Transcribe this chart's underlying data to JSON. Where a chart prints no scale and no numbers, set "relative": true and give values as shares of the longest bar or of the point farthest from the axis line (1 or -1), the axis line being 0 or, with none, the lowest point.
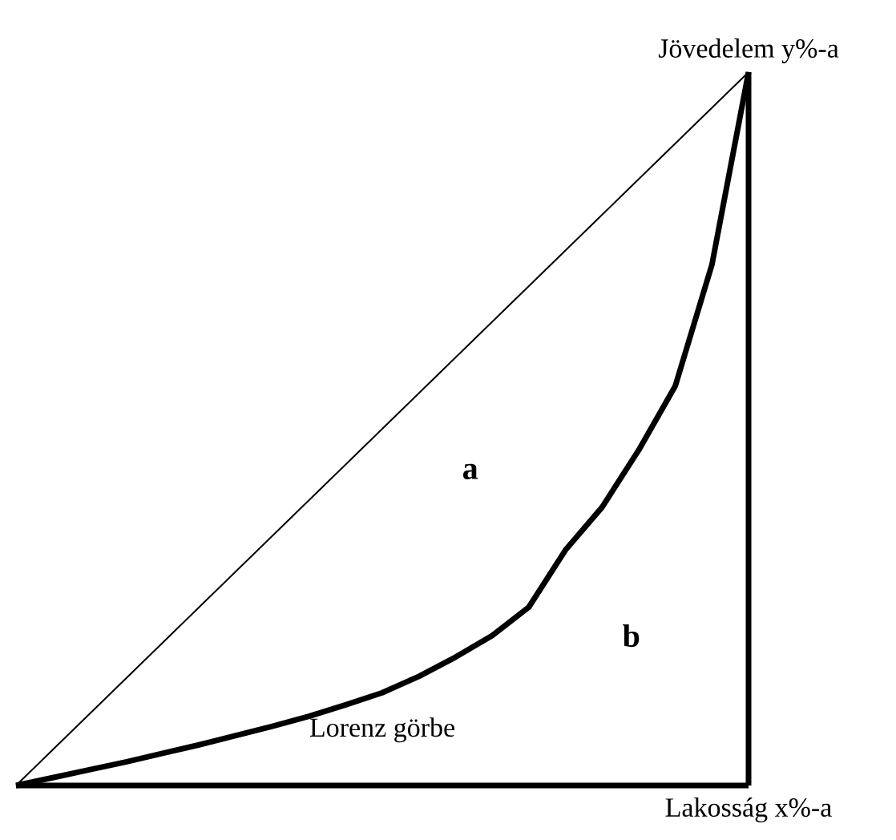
{
  "chart_data": {
    "type": "line",
    "relative": true,
    "xlabel": "Lakosság x%-a",
    "ylabel": "Jövedelem y%-a",
    "annotations": [
      "a",
      "b"
    ],
    "categories": [
      null,
      null,
      null,
      null,
      null,
      null,
      null,
      null,
      null,
      null,
      null,
      null,
      null,
      null,
      null,
      null,
      null,
      null,
      null,
      null,
      null
    ],
    "series": [
      {
        "color": "#000000",
        "values": [
          0,
          0.05,
          0.1,
          0.15,
          0.2,
          0.25,
          0.3,
          0.35,
          0.4,
          0.45,
          0.5,
          0.55,
          0.6,
          0.65,
          0.7,
          0.75,
          0.8,
          0.85,
          0.9,
          0.95,
          1
        ]
      },
      {
        "name": "Lorenz görbe",
        "color": "#000000",
        "values": [
          0,
          0.011,
          0.022,
          0.033,
          0.045,
          0.057,
          0.07,
          0.083,
          0.097,
          0.113,
          0.13,
          0.153,
          0.18,
          0.21,
          0.25,
          0.33,
          0.39,
          0.47,
          0.56,
          0.73,
          1
        ]
      }
    ]
  }
}
